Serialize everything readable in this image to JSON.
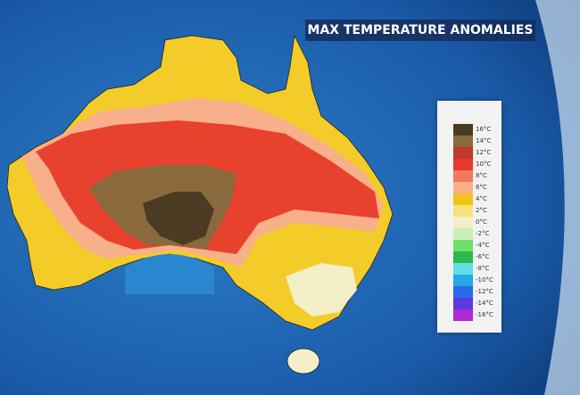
{
  "title": "MAX TEMPERATURE ANOMALIES",
  "legend": {
    "items": [
      {
        "label": "16°C",
        "color": "#4b3b22"
      },
      {
        "label": "14°C",
        "color": "#8a6a3c"
      },
      {
        "label": "12°C",
        "color": "#c0392b"
      },
      {
        "label": "10°C",
        "color": "#e53a2c"
      },
      {
        "label": "8°C",
        "color": "#f07a5a"
      },
      {
        "label": "6°C",
        "color": "#f7b08a"
      },
      {
        "label": "4°C",
        "color": "#f3c21a"
      },
      {
        "label": "2°C",
        "color": "#f6e27a"
      },
      {
        "label": "0°C",
        "color": "#f3efc8"
      },
      {
        "label": "-2°C",
        "color": "#c8f0b8"
      },
      {
        "label": "-4°C",
        "color": "#6ee06a"
      },
      {
        "label": "-6°C",
        "color": "#2fb84a"
      },
      {
        "label": "-8°C",
        "color": "#5fe0e8"
      },
      {
        "label": "-10°C",
        "color": "#27a8e8"
      },
      {
        "label": "-12°C",
        "color": "#2a6ae8"
      },
      {
        "label": "-14°C",
        "color": "#5a3ae0"
      },
      {
        "label": "-16°C",
        "color": "#b02ad0"
      }
    ]
  }
}
